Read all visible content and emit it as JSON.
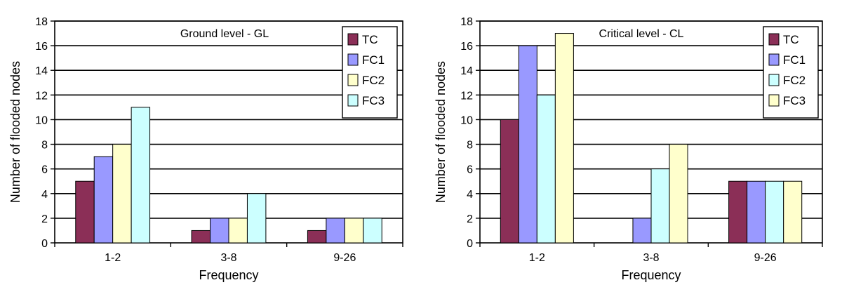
{
  "chart_data": [
    {
      "type": "bar",
      "title": "Ground level - GL",
      "xlabel": "Frequency",
      "ylabel": "Number of flooded nodes",
      "categories": [
        "1-2",
        "3-8",
        "9-26"
      ],
      "ylim": [
        0,
        18
      ],
      "yticks": [
        0,
        2,
        4,
        6,
        8,
        10,
        12,
        14,
        16,
        18
      ],
      "grid": true,
      "legend_position": "top-right",
      "series": [
        {
          "name": "TC",
          "color": "#8b2f57",
          "values": [
            5,
            1,
            1
          ]
        },
        {
          "name": "FC1",
          "color": "#9999ff",
          "values": [
            7,
            2,
            2
          ]
        },
        {
          "name": "FC2",
          "color": "#ffffcc",
          "values": [
            8,
            2,
            2
          ]
        },
        {
          "name": "FC3",
          "color": "#ccffff",
          "values": [
            11,
            4,
            2
          ]
        }
      ]
    },
    {
      "type": "bar",
      "title": "Critical level - CL",
      "xlabel": "Frequency",
      "ylabel": "Number of flooded nodes",
      "categories": [
        "1-2",
        "3-8",
        "9-26"
      ],
      "ylim": [
        0,
        18
      ],
      "yticks": [
        0,
        2,
        4,
        6,
        8,
        10,
        12,
        14,
        16,
        18
      ],
      "grid": true,
      "legend_position": "top-right",
      "series": [
        {
          "name": "TC",
          "color": "#8b2f57",
          "values": [
            10,
            0,
            5
          ]
        },
        {
          "name": "FC1",
          "color": "#9999ff",
          "values": [
            16,
            2,
            5
          ]
        },
        {
          "name": "FC2",
          "color": "#ccffff",
          "values": [
            12,
            6,
            5
          ]
        },
        {
          "name": "FC3",
          "color": "#ffffcc",
          "values": [
            17,
            8,
            5
          ]
        }
      ]
    }
  ]
}
